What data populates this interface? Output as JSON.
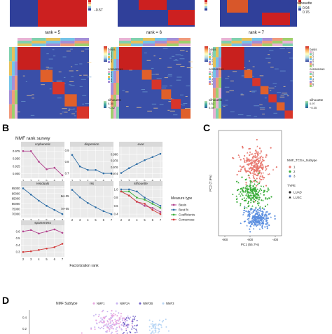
{
  "panels": {
    "B": {
      "letter": "B"
    },
    "C": {
      "letter": "C"
    },
    "D": {
      "letter": "D"
    }
  },
  "top": {
    "rank_titles": [
      "rank = 5",
      "rank = 6",
      "rank = 7"
    ],
    "legend_basis_title": "basis",
    "legend_consensus_title": "consensus",
    "legend_silhouette_title": "silhouette",
    "top_partial_labels": [
      "−0.57",
      "silhouette",
      "0.94",
      "0.76"
    ],
    "rank5": {
      "basis": [
        "1",
        "2",
        "3",
        "4",
        "5"
      ],
      "consensus": [
        "1",
        "2",
        "3",
        "4",
        "5"
      ],
      "sil": [
        "0.35",
        "−0.42"
      ]
    },
    "rank6": {
      "basis": [
        "1",
        "2",
        "3",
        "4",
        "5",
        "6"
      ],
      "consensus": [
        "1",
        "2",
        "3",
        "4",
        "5",
        "6"
      ],
      "sil": [
        "0.52",
        "0.04"
      ]
    },
    "rank7": {
      "basis": [
        "1",
        "2",
        "3",
        "4",
        "5",
        "6",
        "7"
      ],
      "consensus": [
        "1",
        "2",
        "3",
        "4",
        "5",
        "6",
        "7"
      ],
      "sil": [
        "0.97",
        "−0.35"
      ]
    },
    "colorbar_ticks": [
      "1",
      "0.8",
      "0.6",
      "0.4",
      "0.2",
      "0"
    ]
  },
  "chart_data": [
    {
      "type": "line",
      "title": "NMF rank survey",
      "xlabel": "Factorization rank",
      "ylabel": "",
      "legend_title": "Measure type",
      "legend_placement": "right",
      "legend": [
        {
          "name": "Basis",
          "color": "#b2438e"
        },
        {
          "name": "Best fit",
          "color": "#2e6ea6"
        },
        {
          "name": "Coefficients",
          "color": "#3bae3b"
        },
        {
          "name": "Consensus",
          "color": "#d23c3c"
        }
      ],
      "x": [
        2,
        3,
        4,
        5,
        6,
        7
      ],
      "facets": [
        {
          "name": "cophenetic",
          "ticks": [
            "0.975",
            "0.950",
            "0.925",
            "0.900"
          ],
          "ylim": [
            0.89,
            0.985
          ],
          "series": [
            {
              "name": "Basis",
              "values": [
                0.975,
                0.975,
                0.94,
                0.915,
                0.92,
                0.895
              ]
            }
          ]
        },
        {
          "name": "dispersion",
          "ticks": [
            "0.9",
            "0.8",
            "0.7"
          ],
          "ylim": [
            0.67,
            0.92
          ],
          "series": [
            {
              "name": "Best fit",
              "values": [
                0.86,
                0.76,
                0.73,
                0.73,
                0.7,
                0.7
              ]
            }
          ]
        },
        {
          "name": "evar",
          "ticks": [
            "0.980",
            "0.978",
            "0.976",
            "0.974"
          ],
          "ylim": [
            0.973,
            0.982
          ],
          "series": [
            {
              "name": "Best fit",
              "values": [
                0.9742,
                0.9757,
                0.977,
                0.9782,
                0.9792,
                0.9802
              ]
            }
          ]
        },
        {
          "name": "residuals",
          "ticks": [
            "95000",
            "90000",
            "85000",
            "80000",
            "75000",
            "70000"
          ],
          "ylim": [
            68000,
            96000
          ],
          "series": [
            {
              "name": "Best fit",
              "values": [
                95000,
                89000,
                83000,
                78000,
                74000,
                70000
              ]
            }
          ]
        },
        {
          "name": "rss",
          "ticks": [
            "8e+05",
            "7e+05"
          ],
          "ylim": [
            640000,
            870000
          ],
          "series": [
            {
              "name": "Best fit",
              "values": [
                850000,
                790000,
                745000,
                710000,
                680000,
                655000
              ]
            }
          ]
        },
        {
          "name": "silhouette",
          "ticks": [
            "1.0",
            "0.8",
            "0.6",
            "0.4"
          ],
          "ylim": [
            0.35,
            1.05
          ],
          "series": [
            {
              "name": "Basis",
              "values": [
                0.95,
                0.85,
                0.7,
                0.6,
                0.55,
                0.45
              ]
            },
            {
              "name": "Best fit",
              "values": [
                1.0,
                1.0,
                0.95,
                0.8,
                0.7,
                0.6
              ]
            },
            {
              "name": "Coefficients",
              "values": [
                0.95,
                0.95,
                0.8,
                0.75,
                0.65,
                0.55
              ]
            },
            {
              "name": "Consensus",
              "values": [
                0.95,
                0.85,
                0.7,
                0.65,
                0.5,
                0.4
              ]
            }
          ]
        },
        {
          "name": "sparseness",
          "ticks": [
            "0.6",
            "0.5",
            "0.4",
            "0.3"
          ],
          "ylim": [
            0.25,
            0.67
          ],
          "series": [
            {
              "name": "Basis",
              "values": [
                0.6,
                0.62,
                0.57,
                0.6,
                0.63,
                0.58
              ]
            },
            {
              "name": "Consensus",
              "values": [
                0.3,
                0.31,
                0.33,
                0.35,
                0.37,
                0.42
              ]
            }
          ]
        }
      ]
    },
    {
      "type": "scatter",
      "xlabel": "PC1 (55.7%)",
      "ylabel": "PC2 (7.9%)",
      "xticks": [
        "-800",
        "-600",
        "-400"
      ],
      "legend_title": "NMF_TCGA_Subtype",
      "legend_items": [
        {
          "name": "1",
          "color": "#e8786f"
        },
        {
          "name": "2",
          "color": "#3aad3a"
        },
        {
          "name": "3",
          "color": "#5c8fe0"
        }
      ],
      "shape_legend_title": "TYPE",
      "shape_items": [
        "LUAD",
        "LUSC"
      ],
      "clusters": [
        {
          "name": "1",
          "color": "#e8786f",
          "center": [
            -560,
            90
          ],
          "spread": [
            90,
            40
          ],
          "n": 260
        },
        {
          "name": "2",
          "color": "#3aad3a",
          "center": [
            -580,
            10
          ],
          "spread": [
            100,
            30
          ],
          "n": 200
        },
        {
          "name": "3",
          "color": "#5c8fe0",
          "center": [
            -540,
            -60
          ],
          "spread": [
            85,
            22
          ],
          "n": 240
        }
      ],
      "xlim": [
        -850,
        -350
      ],
      "ylim": [
        -110,
        190
      ]
    },
    {
      "type": "scatter",
      "legend_title": "NMF Subtype",
      "legend_items": [
        "NMF1",
        "NMF2A",
        "NMF2B",
        "NMF3"
      ],
      "yticks": [
        "0.4",
        "0.2"
      ]
    }
  ]
}
